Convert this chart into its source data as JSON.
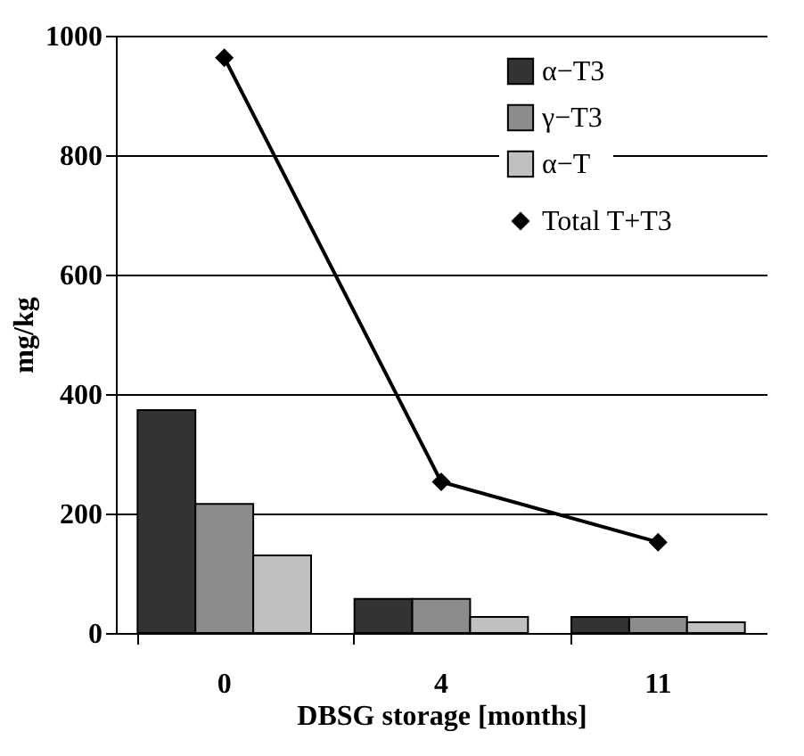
{
  "chart_data": {
    "type": "bar",
    "xlabel": "DBSG storage [months]",
    "ylabel": "mg/kg",
    "categories": [
      "0",
      "4",
      "11"
    ],
    "series": [
      {
        "name": "α−T3",
        "color": "#333333",
        "values": [
          373,
          57,
          27
        ]
      },
      {
        "name": "γ−T3",
        "color": "#8c8c8c",
        "values": [
          216,
          57,
          27
        ]
      },
      {
        "name": "α−T",
        "color": "#c0c0c0",
        "values": [
          130,
          27,
          18
        ]
      },
      {
        "name": "Total T+T3",
        "type": "line",
        "color": "#000000",
        "values": [
          963,
          253,
          152
        ]
      }
    ],
    "ylim": [
      0,
      1000
    ],
    "yticks": [
      0,
      200,
      400,
      600,
      800,
      1000
    ],
    "grid": "y",
    "legend": "top right",
    "marker": "diamond",
    "line_style": "solid"
  }
}
